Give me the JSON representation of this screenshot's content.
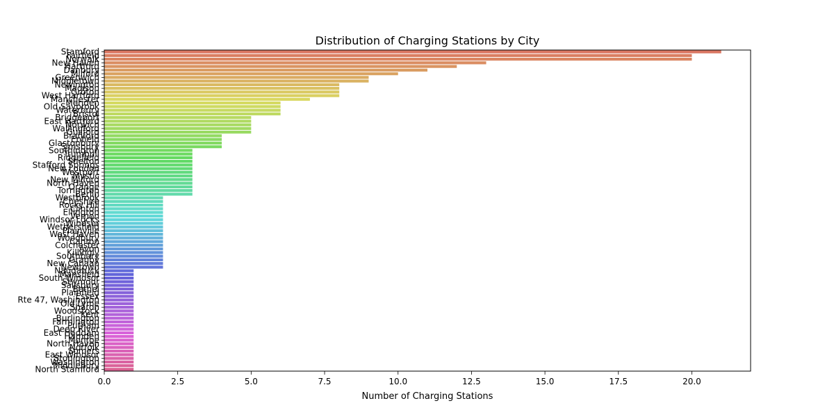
{
  "chart_data": {
    "type": "bar",
    "orientation": "horizontal",
    "title": "Distribution of Charging Stations by City",
    "xlabel": "Number of Charging Stations",
    "ylabel": "",
    "xlim": [
      0,
      22
    ],
    "xticks": [
      0.0,
      2.5,
      5.0,
      7.5,
      10.0,
      12.5,
      15.0,
      17.5,
      20.0
    ],
    "xtick_labels": [
      "0.0",
      "2.5",
      "5.0",
      "7.5",
      "10.0",
      "12.5",
      "15.0",
      "17.5",
      "20.0"
    ],
    "grid": false,
    "legend": "none",
    "bar_count": 88,
    "categories": [
      "Stamford",
      "Fairfield",
      "Norwalk",
      "New Haven",
      "Hartford",
      "Danbury",
      "Milford",
      "Greenwich",
      "Middletown",
      "Newington",
      "Madison",
      "Groton",
      "West Hartford",
      "Manchester",
      "Meriden",
      "Old Saybrook",
      "Waterbury",
      "Bristol",
      "Bridgeport",
      "East Hartford",
      "Norwich",
      "Wallingford",
      "Guilford",
      "Branford",
      "Enfield",
      "Glastonbury",
      "Simsbury",
      "Southington",
      "Trumbull",
      "Ridgefield",
      "Shelton",
      "Stafford Springs",
      "New London",
      "Westport",
      "Mystic",
      "New Milford",
      "North Haven",
      "Orange",
      "Torrington",
      "Berlin",
      "Westbrook",
      "Cheshire",
      "Rocky Hill",
      "Clinton",
      "Ellington",
      "Vernon",
      "Windsor Locks",
      "Windsor",
      "Wethersfield",
      "Plainville",
      "West Haven",
      "Woodbury",
      "Canton",
      "Colchester",
      "Avon",
      "Killingly",
      "Southbury",
      "Granby",
      "New Canaan",
      "Newtown",
      "Naugatuck",
      "Mansfield",
      "South Windsor",
      "Seymour",
      "Salisbury",
      "Bethel",
      "Plainfield",
      "Essex",
      "Rte 47, Washington",
      "Old Lyme",
      "Sharon",
      "Woodstock",
      "Kent",
      "Burlington",
      "Farmington",
      "Putnam",
      "Deep River",
      "East Haddam",
      "Hamden",
      "Monroe",
      "North Haven",
      "Norfolk",
      "Somers",
      "East Windsor",
      "Stonington",
      "Washington",
      "Middlebury",
      "North Stamford"
    ],
    "values": [
      21,
      20,
      20,
      13,
      12,
      11,
      10,
      9,
      9,
      8,
      8,
      8,
      8,
      7,
      6,
      6,
      6,
      6,
      5,
      5,
      5,
      5,
      5,
      4,
      4,
      4,
      4,
      3,
      3,
      3,
      3,
      3,
      3,
      3,
      3,
      3,
      3,
      3,
      3,
      3,
      2,
      2,
      2,
      2,
      2,
      2,
      2,
      2,
      2,
      2,
      2,
      2,
      2,
      2,
      2,
      2,
      2,
      2,
      2,
      2,
      1,
      1,
      1,
      1,
      1,
      1,
      1,
      1,
      1,
      1,
      1,
      1,
      1,
      1,
      1,
      1,
      1,
      1,
      1,
      1,
      1,
      1,
      1,
      1,
      1,
      1,
      1,
      1
    ]
  }
}
